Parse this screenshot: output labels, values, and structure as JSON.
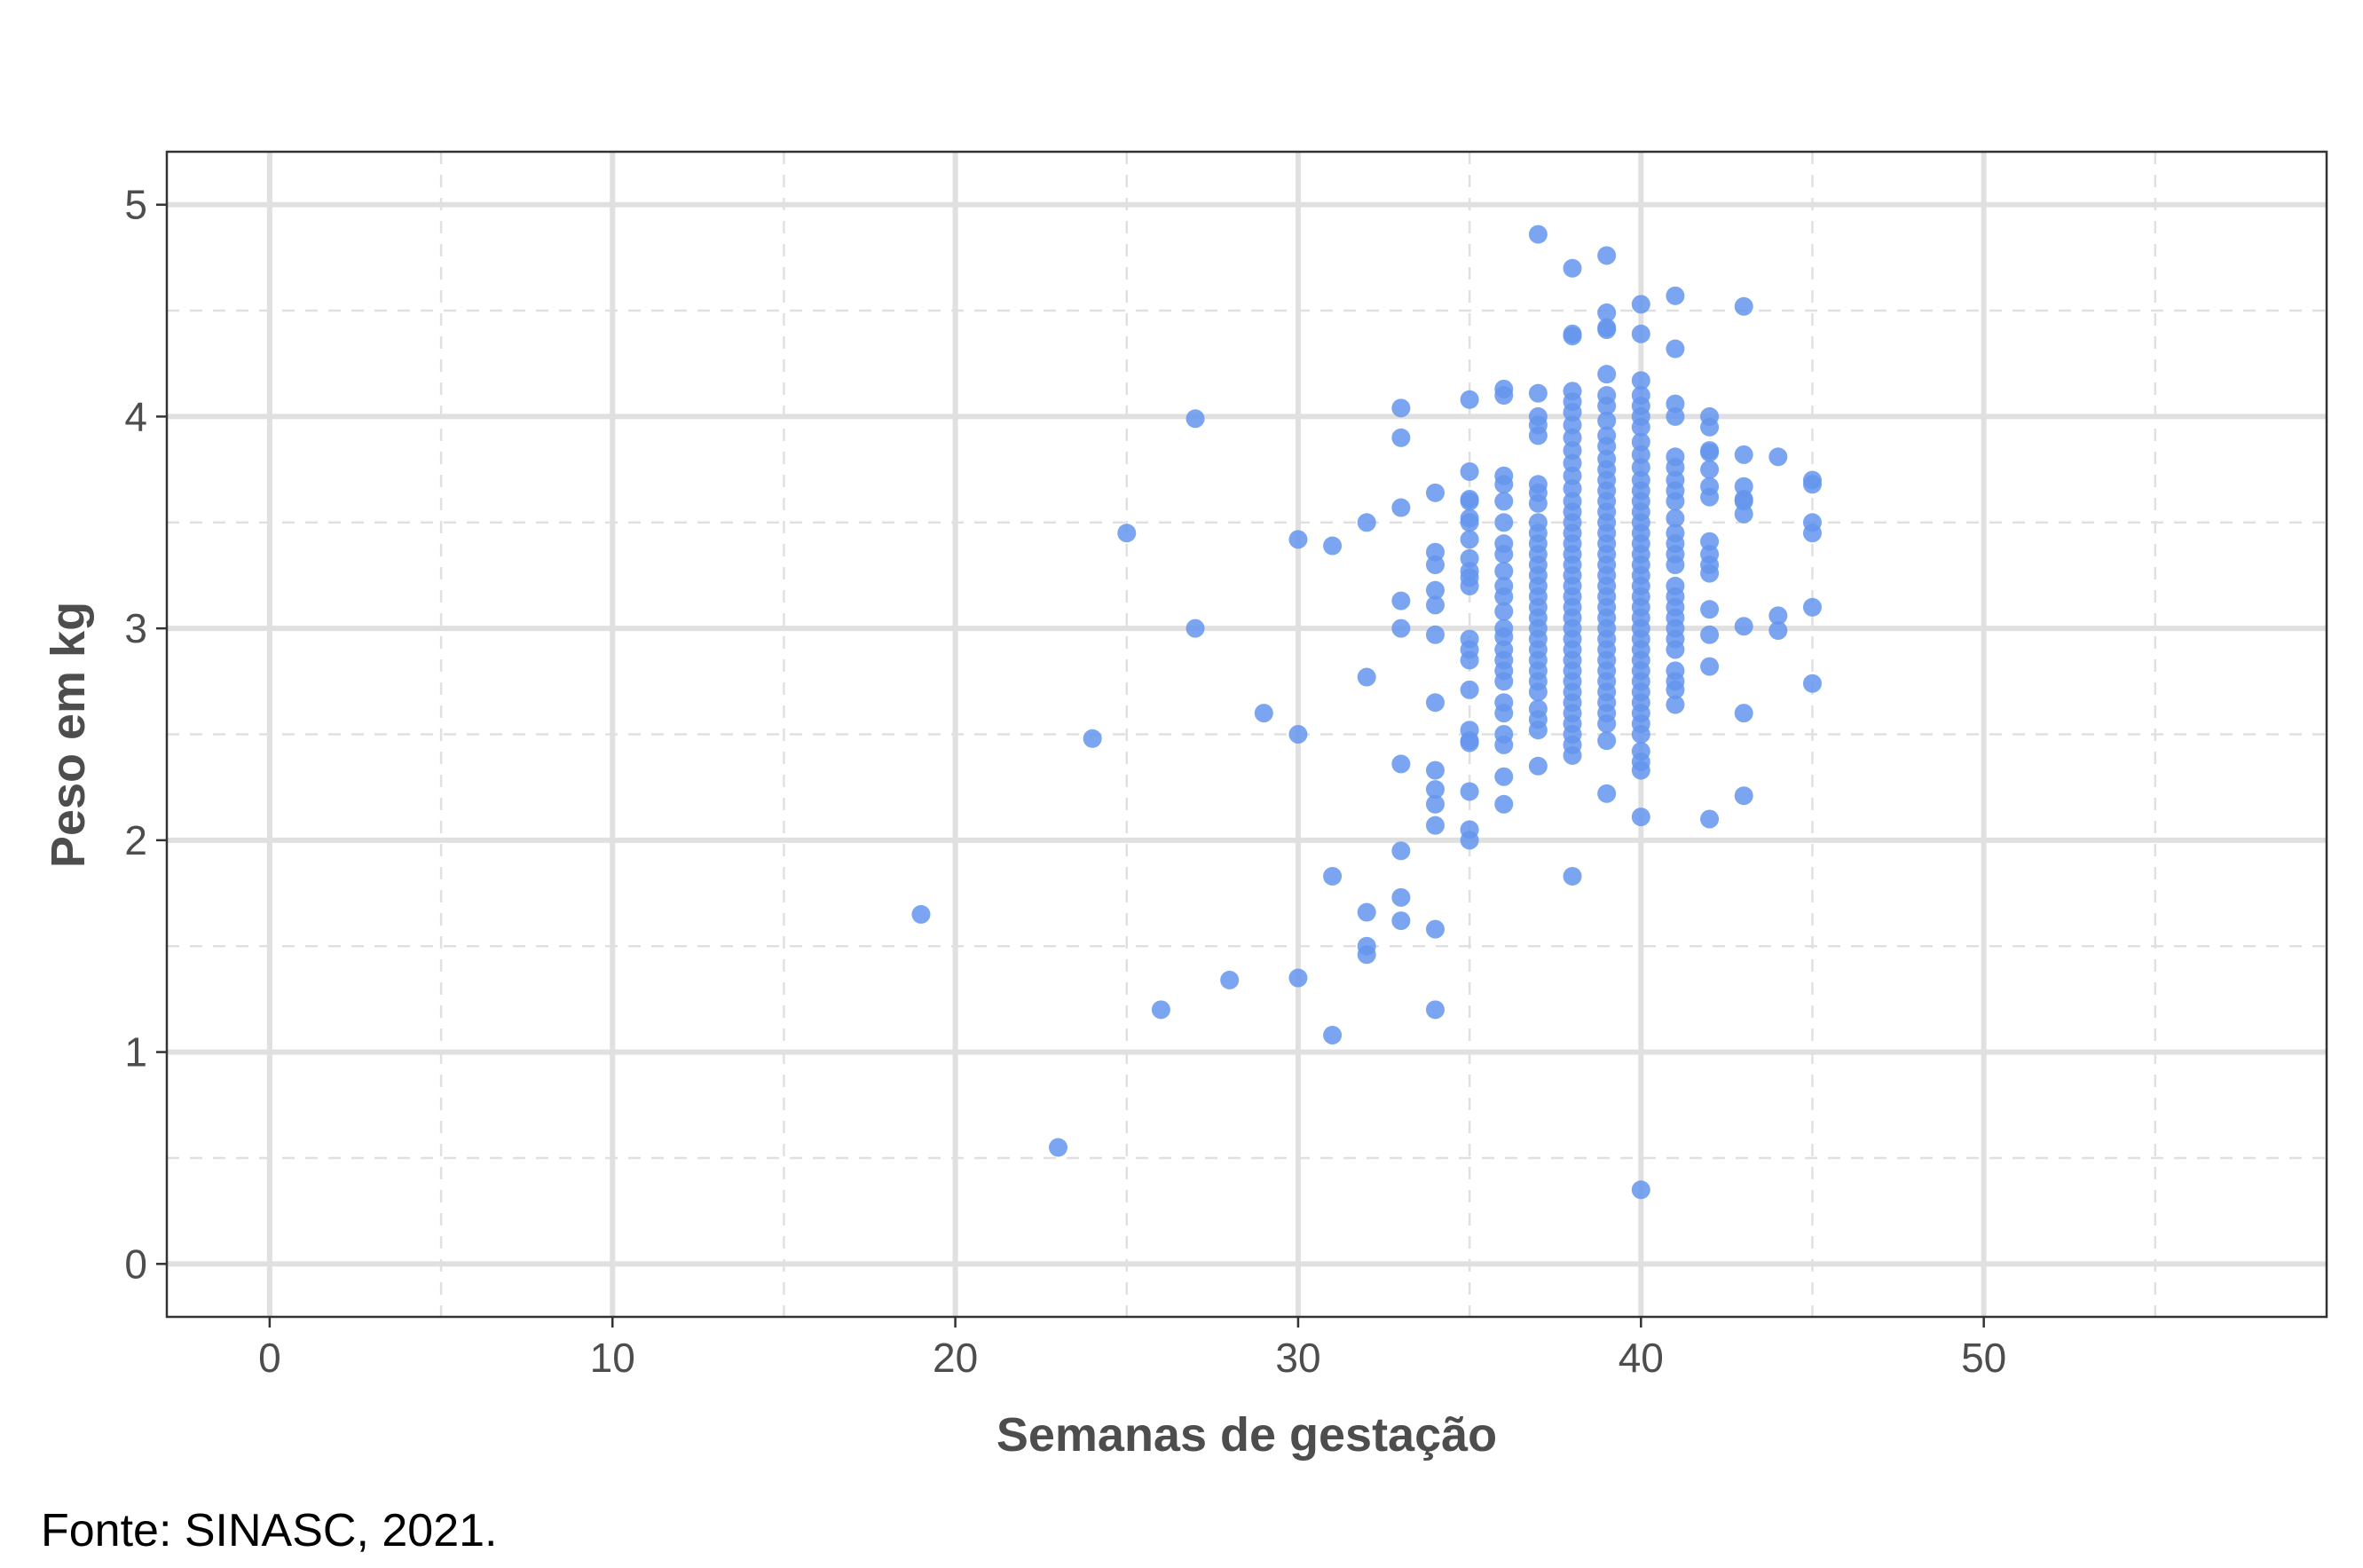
{
  "source": "Fonte: SINASC, 2021.",
  "colors": {
    "point": "#6495ED",
    "grid_major": "#e0e0e0",
    "grid_minor": "#e0e0e0",
    "panel_border": "#333333",
    "text": "#4d4d4d"
  },
  "chart_data": {
    "type": "scatter",
    "title": "",
    "xlabel": "Semanas de gestação",
    "ylabel": "Peso em kg",
    "xlim": [
      -3,
      60
    ],
    "ylim": [
      -0.25,
      5.25
    ],
    "xticks": [
      0,
      10,
      20,
      30,
      40,
      50
    ],
    "yticks": [
      0,
      1,
      2,
      3,
      4,
      5
    ],
    "grid": true,
    "legend": "none",
    "points": [
      [
        19,
        1.65
      ],
      [
        23,
        0.55
      ],
      [
        24,
        2.48
      ],
      [
        25,
        3.45
      ],
      [
        26,
        1.2
      ],
      [
        27,
        3.99
      ],
      [
        27,
        3.0
      ],
      [
        28,
        1.34
      ],
      [
        29,
        2.6
      ],
      [
        30,
        3.42
      ],
      [
        30,
        2.5
      ],
      [
        30,
        1.35
      ],
      [
        31,
        3.39
      ],
      [
        31,
        1.83
      ],
      [
        31,
        1.08
      ],
      [
        32,
        3.5
      ],
      [
        32,
        2.77
      ],
      [
        32,
        1.66
      ],
      [
        32,
        1.5
      ],
      [
        32,
        1.46
      ],
      [
        33,
        4.04
      ],
      [
        33,
        3.9
      ],
      [
        33,
        3.57
      ],
      [
        33,
        3.13
      ],
      [
        33,
        3.0
      ],
      [
        33,
        2.36
      ],
      [
        33,
        1.95
      ],
      [
        33,
        1.73
      ],
      [
        33,
        1.62
      ],
      [
        34,
        3.64
      ],
      [
        34,
        3.36
      ],
      [
        34,
        3.3
      ],
      [
        34,
        3.18
      ],
      [
        34,
        3.11
      ],
      [
        34,
        2.97
      ],
      [
        34,
        2.65
      ],
      [
        34,
        2.33
      ],
      [
        34,
        2.24
      ],
      [
        34,
        2.17
      ],
      [
        34,
        2.07
      ],
      [
        34,
        1.58
      ],
      [
        34,
        1.2
      ],
      [
        35,
        4.08
      ],
      [
        35,
        3.74
      ],
      [
        35,
        3.61
      ],
      [
        35,
        3.6
      ],
      [
        35,
        3.52
      ],
      [
        35,
        3.5
      ],
      [
        35,
        3.42
      ],
      [
        35,
        3.33
      ],
      [
        35,
        3.27
      ],
      [
        35,
        3.24
      ],
      [
        35,
        3.2
      ],
      [
        35,
        2.95
      ],
      [
        35,
        2.9
      ],
      [
        35,
        2.85
      ],
      [
        35,
        2.71
      ],
      [
        35,
        2.52
      ],
      [
        35,
        2.47
      ],
      [
        35,
        2.46
      ],
      [
        35,
        2.23
      ],
      [
        35,
        2.05
      ],
      [
        35,
        2.0
      ],
      [
        36,
        4.13
      ],
      [
        36,
        4.1
      ],
      [
        36,
        3.72
      ],
      [
        36,
        3.68
      ],
      [
        36,
        3.6
      ],
      [
        36,
        3.5
      ],
      [
        36,
        3.4
      ],
      [
        36,
        3.35
      ],
      [
        36,
        3.27
      ],
      [
        36,
        3.2
      ],
      [
        36,
        3.15
      ],
      [
        36,
        3.08
      ],
      [
        36,
        3.0
      ],
      [
        36,
        2.96
      ],
      [
        36,
        2.9
      ],
      [
        36,
        2.85
      ],
      [
        36,
        2.8
      ],
      [
        36,
        2.75
      ],
      [
        36,
        2.65
      ],
      [
        36,
        2.6
      ],
      [
        36,
        2.5
      ],
      [
        36,
        2.45
      ],
      [
        36,
        2.3
      ],
      [
        36,
        2.17
      ],
      [
        37,
        4.86
      ],
      [
        37,
        4.11
      ],
      [
        37,
        4.0
      ],
      [
        37,
        3.96
      ],
      [
        37,
        3.91
      ],
      [
        37,
        3.68
      ],
      [
        37,
        3.64
      ],
      [
        37,
        3.59
      ],
      [
        37,
        3.5
      ],
      [
        37,
        3.45
      ],
      [
        37,
        3.4
      ],
      [
        37,
        3.35
      ],
      [
        37,
        3.3
      ],
      [
        37,
        3.25
      ],
      [
        37,
        3.2
      ],
      [
        37,
        3.15
      ],
      [
        37,
        3.1
      ],
      [
        37,
        3.05
      ],
      [
        37,
        3.0
      ],
      [
        37,
        2.95
      ],
      [
        37,
        2.9
      ],
      [
        37,
        2.85
      ],
      [
        37,
        2.8
      ],
      [
        37,
        2.75
      ],
      [
        37,
        2.7
      ],
      [
        37,
        2.62
      ],
      [
        37,
        2.57
      ],
      [
        37,
        2.52
      ],
      [
        37,
        2.35
      ],
      [
        38,
        4.7
      ],
      [
        38,
        4.39
      ],
      [
        38,
        4.38
      ],
      [
        38,
        4.12
      ],
      [
        38,
        4.07
      ],
      [
        38,
        4.02
      ],
      [
        38,
        3.96
      ],
      [
        38,
        3.9
      ],
      [
        38,
        3.84
      ],
      [
        38,
        3.78
      ],
      [
        38,
        3.72
      ],
      [
        38,
        3.66
      ],
      [
        38,
        3.6
      ],
      [
        38,
        3.55
      ],
      [
        38,
        3.5
      ],
      [
        38,
        3.45
      ],
      [
        38,
        3.4
      ],
      [
        38,
        3.35
      ],
      [
        38,
        3.3
      ],
      [
        38,
        3.25
      ],
      [
        38,
        3.2
      ],
      [
        38,
        3.15
      ],
      [
        38,
        3.1
      ],
      [
        38,
        3.05
      ],
      [
        38,
        3.0
      ],
      [
        38,
        2.95
      ],
      [
        38,
        2.9
      ],
      [
        38,
        2.85
      ],
      [
        38,
        2.8
      ],
      [
        38,
        2.75
      ],
      [
        38,
        2.7
      ],
      [
        38,
        2.65
      ],
      [
        38,
        2.6
      ],
      [
        38,
        2.55
      ],
      [
        38,
        2.5
      ],
      [
        38,
        2.45
      ],
      [
        38,
        2.4
      ],
      [
        38,
        1.83
      ],
      [
        39,
        4.76
      ],
      [
        39,
        4.49
      ],
      [
        39,
        4.42
      ],
      [
        39,
        4.41
      ],
      [
        39,
        4.2
      ],
      [
        39,
        4.1
      ],
      [
        39,
        4.05
      ],
      [
        39,
        3.98
      ],
      [
        39,
        3.91
      ],
      [
        39,
        3.86
      ],
      [
        39,
        3.8
      ],
      [
        39,
        3.75
      ],
      [
        39,
        3.7
      ],
      [
        39,
        3.65
      ],
      [
        39,
        3.6
      ],
      [
        39,
        3.55
      ],
      [
        39,
        3.5
      ],
      [
        39,
        3.45
      ],
      [
        39,
        3.4
      ],
      [
        39,
        3.35
      ],
      [
        39,
        3.3
      ],
      [
        39,
        3.25
      ],
      [
        39,
        3.2
      ],
      [
        39,
        3.15
      ],
      [
        39,
        3.1
      ],
      [
        39,
        3.05
      ],
      [
        39,
        3.0
      ],
      [
        39,
        2.95
      ],
      [
        39,
        2.9
      ],
      [
        39,
        2.85
      ],
      [
        39,
        2.8
      ],
      [
        39,
        2.75
      ],
      [
        39,
        2.7
      ],
      [
        39,
        2.65
      ],
      [
        39,
        2.6
      ],
      [
        39,
        2.55
      ],
      [
        39,
        2.47
      ],
      [
        39,
        2.22
      ],
      [
        40,
        4.53
      ],
      [
        40,
        4.39
      ],
      [
        40,
        4.17
      ],
      [
        40,
        4.1
      ],
      [
        40,
        4.05
      ],
      [
        40,
        4.0
      ],
      [
        40,
        3.95
      ],
      [
        40,
        3.88
      ],
      [
        40,
        3.82
      ],
      [
        40,
        3.76
      ],
      [
        40,
        3.7
      ],
      [
        40,
        3.65
      ],
      [
        40,
        3.6
      ],
      [
        40,
        3.55
      ],
      [
        40,
        3.5
      ],
      [
        40,
        3.45
      ],
      [
        40,
        3.4
      ],
      [
        40,
        3.35
      ],
      [
        40,
        3.3
      ],
      [
        40,
        3.25
      ],
      [
        40,
        3.2
      ],
      [
        40,
        3.15
      ],
      [
        40,
        3.1
      ],
      [
        40,
        3.05
      ],
      [
        40,
        3.0
      ],
      [
        40,
        2.95
      ],
      [
        40,
        2.9
      ],
      [
        40,
        2.85
      ],
      [
        40,
        2.8
      ],
      [
        40,
        2.75
      ],
      [
        40,
        2.7
      ],
      [
        40,
        2.65
      ],
      [
        40,
        2.6
      ],
      [
        40,
        2.55
      ],
      [
        40,
        2.5
      ],
      [
        40,
        2.42
      ],
      [
        40,
        2.37
      ],
      [
        40,
        2.33
      ],
      [
        40,
        2.11
      ],
      [
        40,
        0.35
      ],
      [
        41,
        4.57
      ],
      [
        41,
        4.32
      ],
      [
        41,
        4.06
      ],
      [
        41,
        4.0
      ],
      [
        41,
        3.81
      ],
      [
        41,
        3.76
      ],
      [
        41,
        3.7
      ],
      [
        41,
        3.65
      ],
      [
        41,
        3.6
      ],
      [
        41,
        3.52
      ],
      [
        41,
        3.45
      ],
      [
        41,
        3.4
      ],
      [
        41,
        3.35
      ],
      [
        41,
        3.3
      ],
      [
        41,
        3.2
      ],
      [
        41,
        3.15
      ],
      [
        41,
        3.1
      ],
      [
        41,
        3.05
      ],
      [
        41,
        3.0
      ],
      [
        41,
        2.95
      ],
      [
        41,
        2.9
      ],
      [
        41,
        2.8
      ],
      [
        41,
        2.75
      ],
      [
        41,
        2.71
      ],
      [
        41,
        2.64
      ],
      [
        42,
        4.0
      ],
      [
        42,
        3.95
      ],
      [
        42,
        3.84
      ],
      [
        42,
        3.83
      ],
      [
        42,
        3.75
      ],
      [
        42,
        3.67
      ],
      [
        42,
        3.62
      ],
      [
        42,
        3.41
      ],
      [
        42,
        3.35
      ],
      [
        42,
        3.3
      ],
      [
        42,
        3.26
      ],
      [
        42,
        3.09
      ],
      [
        42,
        2.97
      ],
      [
        42,
        2.82
      ],
      [
        42,
        2.1
      ],
      [
        43,
        4.52
      ],
      [
        43,
        3.82
      ],
      [
        43,
        3.67
      ],
      [
        43,
        3.61
      ],
      [
        43,
        3.6
      ],
      [
        43,
        3.54
      ],
      [
        43,
        3.01
      ],
      [
        43,
        2.6
      ],
      [
        43,
        2.21
      ],
      [
        44,
        3.81
      ],
      [
        44,
        3.06
      ],
      [
        44,
        2.99
      ],
      [
        45,
        3.7
      ],
      [
        45,
        3.68
      ],
      [
        45,
        3.5
      ],
      [
        45,
        3.45
      ],
      [
        45,
        3.1
      ],
      [
        45,
        2.74
      ]
    ]
  }
}
